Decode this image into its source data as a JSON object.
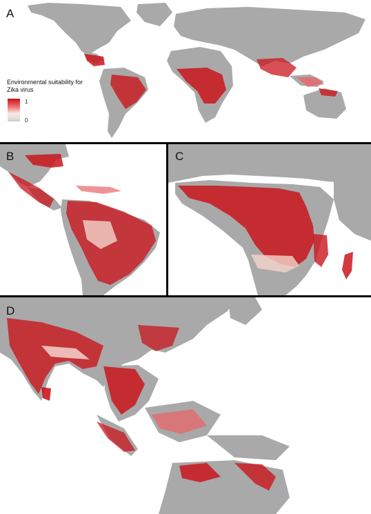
{
  "panels": [
    {
      "letter": "A"
    },
    {
      "letter": "B"
    },
    {
      "letter": "C"
    },
    {
      "letter": "D"
    }
  ],
  "legend": {
    "title_line1": "Environmental suitability for",
    "title_line2": "Zika virus",
    "max_label": "1",
    "min_label": "0"
  },
  "colors": {
    "land": "#a9a9a9",
    "high": "#c9161d",
    "medium": "#e8676a",
    "low": "#f4d4cc",
    "background": "#ffffff"
  }
}
